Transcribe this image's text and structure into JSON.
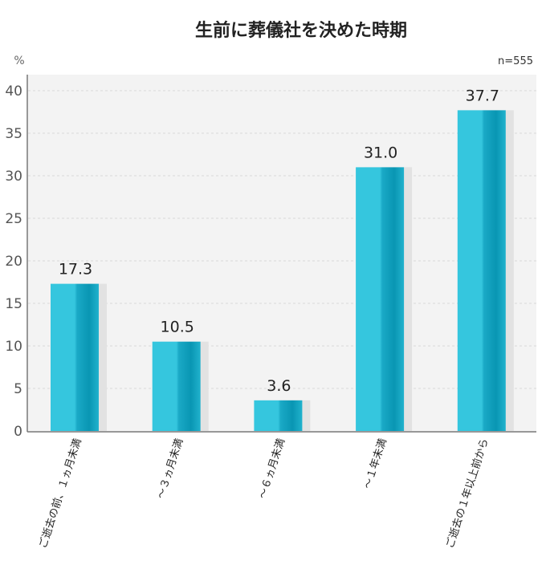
{
  "chart_data": {
    "type": "bar",
    "title": "生前に葬儀社を決めた時期",
    "ylabel": "%",
    "note": "n=555",
    "categories": [
      "ご逝去の前、１ヵ月未満",
      "〜３ヵ月未満",
      "〜６ヵ月未満",
      "〜１年未満",
      "ご逝去の１年以上前から"
    ],
    "values": [
      17.3,
      10.5,
      3.6,
      31.0,
      37.7
    ],
    "value_labels": [
      "17.3",
      "10.5",
      "3.6",
      "31.0",
      "37.7"
    ],
    "ylim": [
      0,
      40
    ],
    "yticks": [
      "0",
      "5",
      "10",
      "15",
      "20",
      "25",
      "30",
      "35",
      "40"
    ],
    "grid": true,
    "colors": {
      "bar": "#33c3dc",
      "bar_dark": "#0b97b5",
      "plot_bg": "#f3f3f3"
    }
  }
}
